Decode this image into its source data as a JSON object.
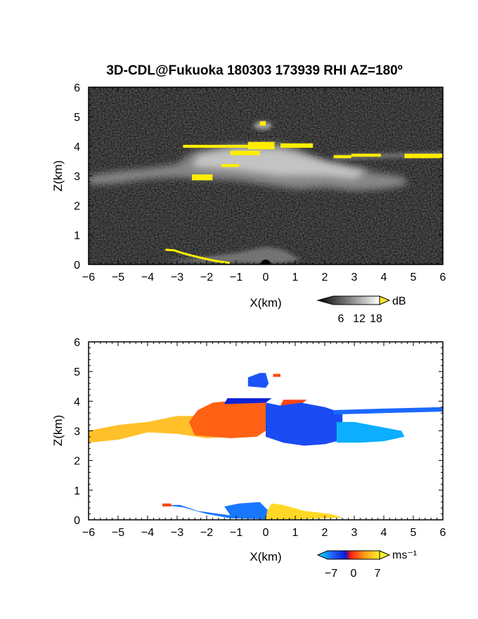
{
  "title": "3D-CDL@Fukuoka 180303 173939 RHI AZ=180º",
  "chart_data": [
    {
      "type": "heatmap",
      "quantity": "reflectivity",
      "xlabel": "X(km)",
      "ylabel": "Z(km)",
      "xlim": [
        -6,
        6
      ],
      "ylim": [
        0,
        6
      ],
      "xticks": [
        "-6",
        "-5",
        "-4",
        "-3",
        "-2",
        "-1",
        "0",
        "1",
        "2",
        "3",
        "4",
        "5",
        "6"
      ],
      "yticks": [
        "0",
        "1",
        "2",
        "3",
        "4",
        "5",
        "6"
      ],
      "colorbar": {
        "unit": "dB",
        "ticks": [
          "6",
          "12",
          "18"
        ],
        "range": [
          0,
          20
        ]
      },
      "background": "#141414",
      "features": [
        {
          "name": "cloud layer",
          "x": [
            -6,
            4.8
          ],
          "z": [
            2.6,
            4.1
          ]
        },
        {
          "name": "upper cell",
          "x": [
            -0.7,
            0.4
          ],
          "z": [
            4.4,
            5.0
          ]
        },
        {
          "name": "cirrus streak",
          "x": [
            2.3,
            6.0
          ],
          "z": [
            3.5,
            3.8
          ]
        },
        {
          "name": "near-ground echo",
          "x": [
            -3.5,
            0.5
          ],
          "z": [
            0.0,
            0.6
          ]
        }
      ]
    },
    {
      "type": "heatmap",
      "quantity": "doppler velocity",
      "xlabel": "X(km)",
      "ylabel": "Z(km)",
      "xlim": [
        -6,
        6
      ],
      "ylim": [
        0,
        6
      ],
      "xticks": [
        "-6",
        "-5",
        "-4",
        "-3",
        "-2",
        "-1",
        "0",
        "1",
        "2",
        "3",
        "4",
        "5",
        "6"
      ],
      "yticks": [
        "0",
        "1",
        "2",
        "3",
        "4",
        "5",
        "6"
      ],
      "colorbar": {
        "unit": "ms⁻¹",
        "ticks": [
          "−7",
          "0",
          "7"
        ],
        "range": [
          -10,
          10
        ]
      },
      "features": [
        {
          "name": "cloud layer west",
          "x": [
            -6,
            -1.0
          ],
          "z": [
            2.7,
            3.5
          ],
          "velocity": 7
        },
        {
          "name": "cloud layer center west",
          "x": [
            -2.5,
            0
          ],
          "z": [
            2.8,
            4.0
          ],
          "velocity": 3
        },
        {
          "name": "cloud layer center east",
          "x": [
            0,
            2.5
          ],
          "z": [
            2.5,
            4.2
          ],
          "velocity": -5
        },
        {
          "name": "cloud layer east",
          "x": [
            2.0,
            4.8
          ],
          "z": [
            2.5,
            3.2
          ],
          "velocity": -8
        },
        {
          "name": "cirrus streak",
          "x": [
            2.3,
            6.0
          ],
          "z": [
            3.5,
            3.8
          ],
          "velocity": -6
        },
        {
          "name": "upper cell",
          "x": [
            -0.7,
            0.4
          ],
          "z": [
            4.4,
            5.0
          ],
          "velocity": -5
        },
        {
          "name": "near-ground echo west",
          "x": [
            -3.5,
            0
          ],
          "z": [
            0.0,
            0.6
          ],
          "velocity": -6
        },
        {
          "name": "near-ground echo east",
          "x": [
            0,
            2.6
          ],
          "z": [
            0.0,
            0.6
          ],
          "velocity": 8
        }
      ]
    }
  ]
}
